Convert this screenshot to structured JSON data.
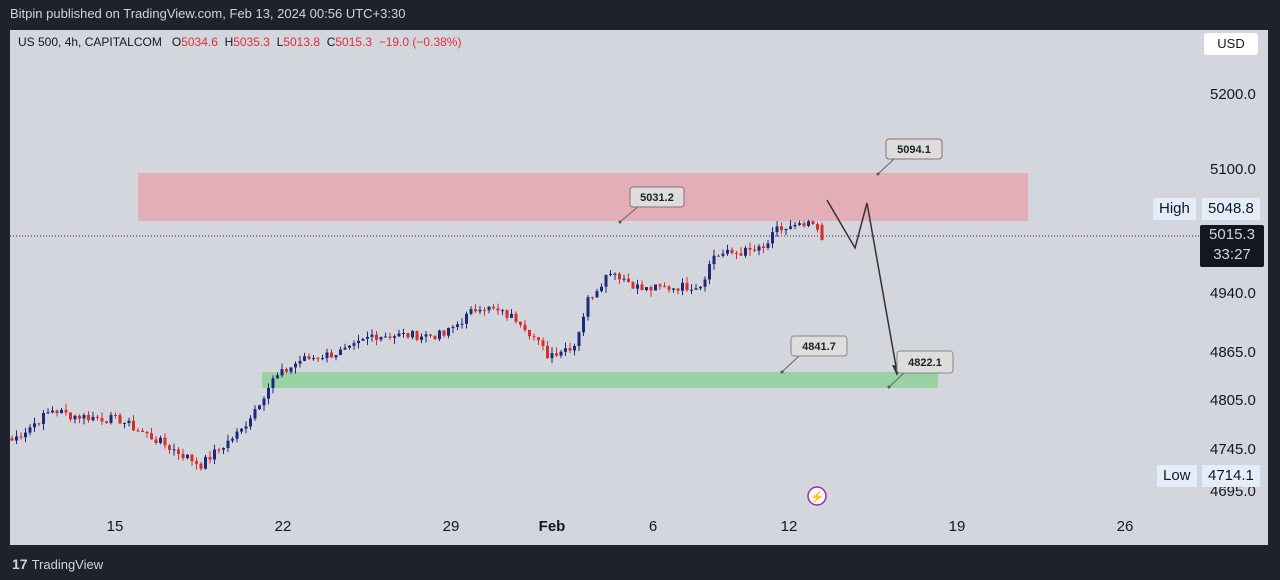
{
  "header": {
    "published": "Bitpin published on TradingView.com, Feb 13, 2024 00:56 UTC+3:30"
  },
  "legend": {
    "symbol": "US 500, 4h, CAPITALCOM",
    "o_label": "O",
    "o": "5034.6",
    "h_label": "H",
    "h": "5035.3",
    "l_label": "L",
    "l": "5013.8",
    "c_label": "C",
    "c": "5015.3",
    "change": "−19.0 (−0.38%)"
  },
  "currency": "USD",
  "price_axis": {
    "ticks": [
      "5200.0",
      "5100.0",
      "4940.0",
      "4865.0",
      "4805.0",
      "4745.0",
      "4695.0"
    ],
    "high_label": "High",
    "high_value": "5048.8",
    "last_price": "5015.3",
    "countdown": "33:27",
    "low_label": "Low",
    "low_value": "4714.1"
  },
  "time_axis": [
    "15",
    "22",
    "29",
    "Feb",
    "6",
    "12",
    "19",
    "26"
  ],
  "annotations": {
    "labels": [
      "5031.2",
      "5094.1",
      "4841.7",
      "4822.1"
    ]
  },
  "zones": {
    "resistance_color": "#e8a0aa",
    "support_color": "#8fd19a"
  },
  "colors": {
    "up": "#1e2a78",
    "down": "#d32f2f"
  },
  "price_path": [
    [
      0,
      4760
    ],
    [
      9,
      4799
    ],
    [
      13,
      4792
    ],
    [
      24,
      4786
    ],
    [
      42,
      4729
    ],
    [
      51,
      4773
    ],
    [
      58,
      4837
    ],
    [
      64,
      4862
    ],
    [
      75,
      4875
    ],
    [
      80,
      4894
    ],
    [
      96,
      4894
    ],
    [
      104,
      4932
    ],
    [
      113,
      4913
    ],
    [
      119,
      4869
    ],
    [
      125,
      4882
    ],
    [
      128,
      4939
    ],
    [
      133,
      4977
    ],
    [
      140,
      4952
    ],
    [
      153,
      4958
    ],
    [
      156,
      4996
    ],
    [
      167,
      5003
    ],
    [
      170,
      5028
    ],
    [
      178,
      5034
    ],
    [
      180,
      5015.3
    ]
  ],
  "footer": {
    "brand": "TradingView"
  }
}
